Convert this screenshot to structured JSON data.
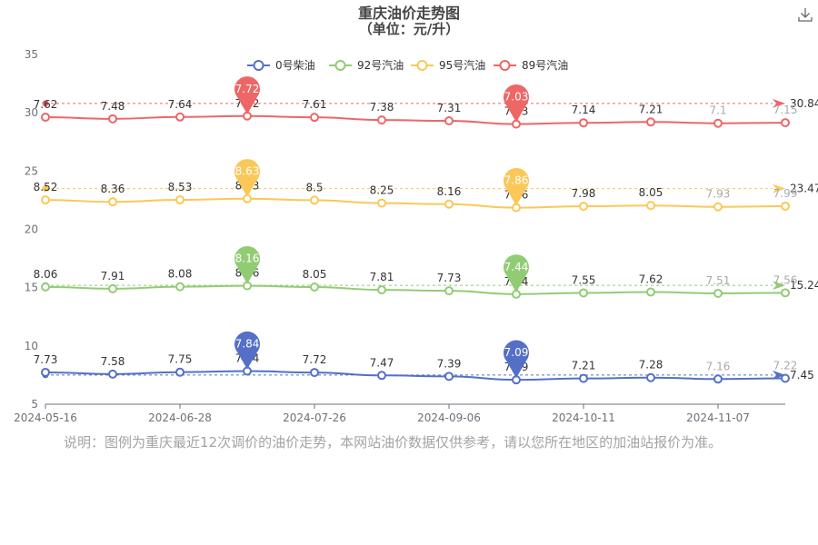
{
  "chart_data": {
    "type": "line",
    "title": "重庆油价走势图",
    "subtitle": "（单位：元/升）",
    "x_tick_labels": [
      "2024-05-16",
      "2024-06-28",
      "2024-07-26",
      "2024-09-06",
      "2024-10-11",
      "2024-11-07"
    ],
    "y_ticks": [
      5,
      10,
      15,
      20,
      25,
      30,
      35
    ],
    "ylim": [
      5,
      35
    ],
    "legend_position": "top",
    "grid": false,
    "series": [
      {
        "name": "0号柴油",
        "color": "#5470c6",
        "offset": 0,
        "values": [
          7.73,
          7.58,
          7.75,
          7.84,
          7.72,
          7.47,
          7.39,
          7.09,
          7.21,
          7.28,
          7.16,
          7.22
        ],
        "max_value": 7.84,
        "min_value": 7.09,
        "average_start": 7.5,
        "end_value": 7.45
      },
      {
        "name": "92号汽油",
        "color": "#91cc75",
        "offset": 7,
        "values": [
          8.06,
          7.91,
          8.08,
          8.16,
          8.05,
          7.81,
          7.73,
          7.44,
          7.55,
          7.62,
          7.51,
          7.56
        ],
        "max_value": 8.16,
        "min_value": 7.44,
        "average_start": 15.2,
        "end_value": 15.24
      },
      {
        "name": "95号汽油",
        "color": "#fac858",
        "offset": 14,
        "values": [
          8.52,
          8.36,
          8.53,
          8.63,
          8.5,
          8.25,
          8.16,
          7.86,
          7.98,
          8.05,
          7.93,
          7.99
        ],
        "max_value": 8.63,
        "min_value": 7.86,
        "average_start": 23.5,
        "end_value": 23.47
      },
      {
        "name": "89号汽油",
        "color": "#ee6666",
        "offset": 22,
        "values": [
          7.62,
          7.48,
          7.64,
          7.72,
          7.61,
          7.38,
          7.31,
          7.03,
          7.14,
          7.21,
          7.1,
          7.15
        ],
        "max_value": 7.72,
        "min_value": 7.03,
        "average_start": 30.8,
        "end_value": 30.84
      }
    ],
    "note": "说明：图例为重庆最近12次调价的油价走势，本网站油价数据仅供参考，请以您所在地区的加油站报价为准。"
  },
  "toolbar": {
    "download_icon": "download-icon"
  }
}
